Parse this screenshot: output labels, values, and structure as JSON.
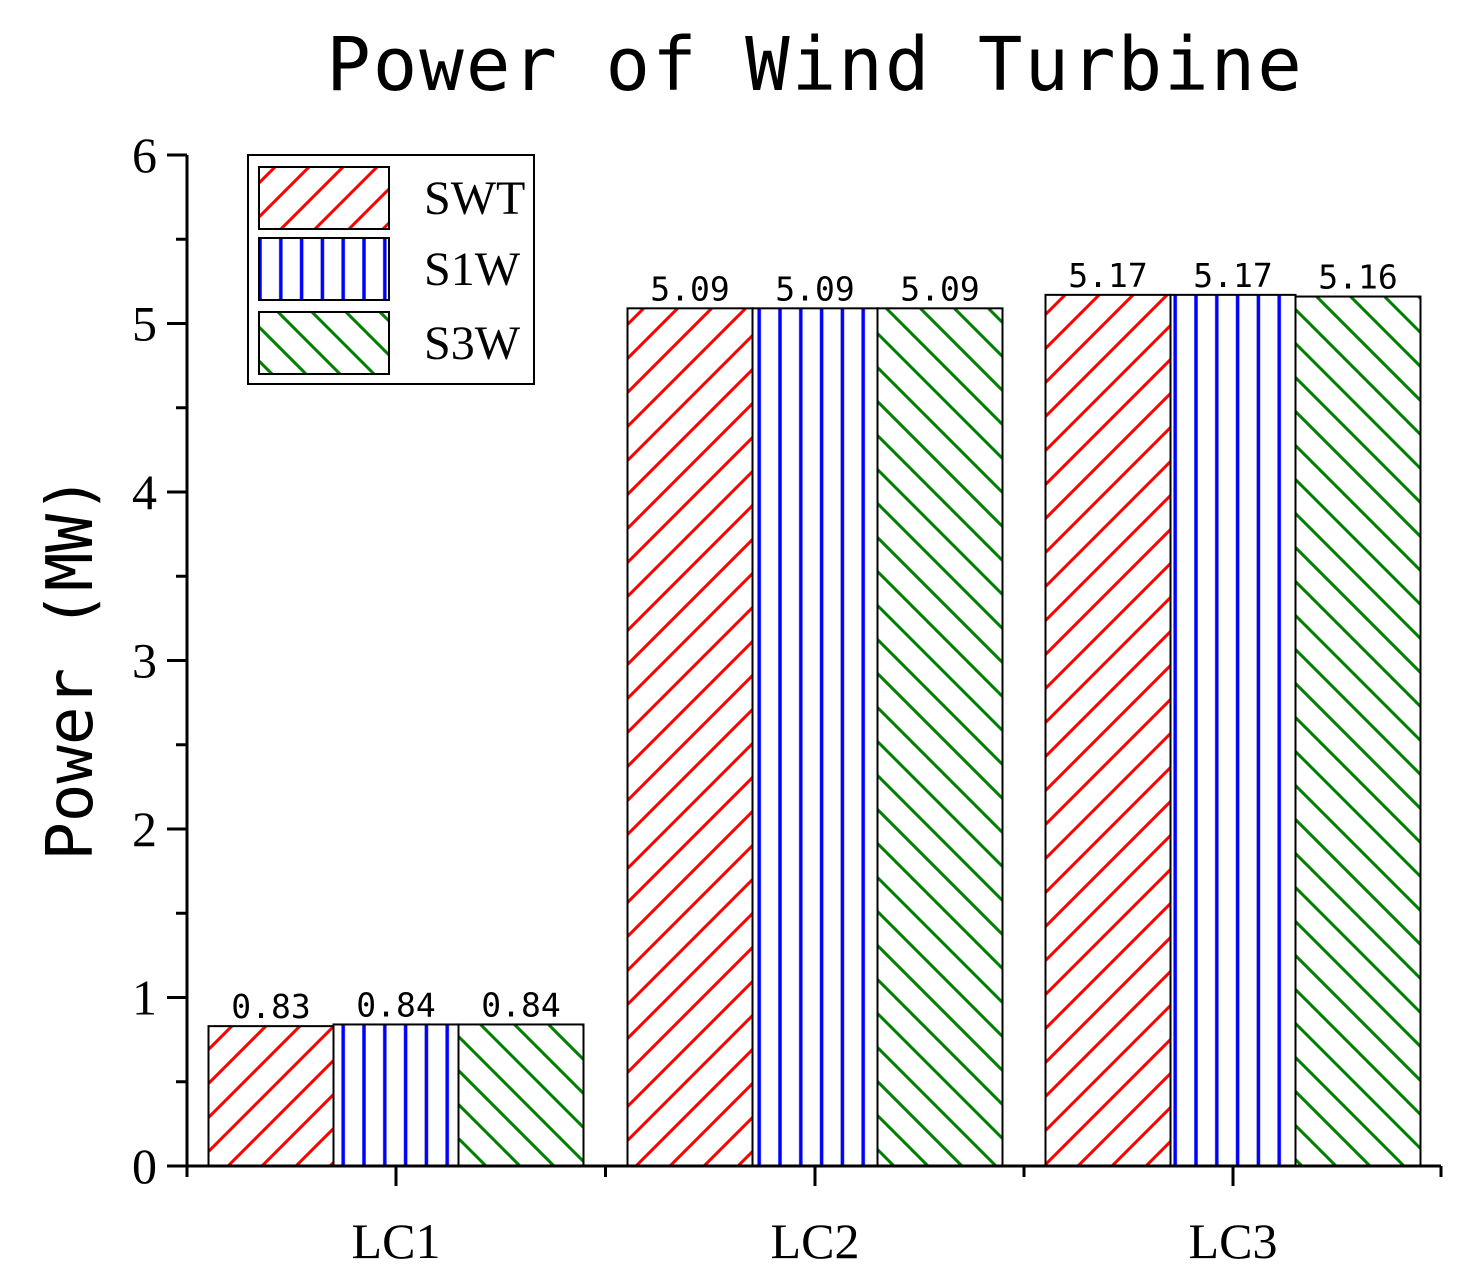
{
  "chart_data": {
    "type": "bar",
    "title": "Power of Wind Turbine",
    "xlabel": "",
    "ylabel": "Power (MW)",
    "ylim": [
      0,
      6
    ],
    "yticks": [
      0,
      1,
      2,
      3,
      4,
      5,
      6
    ],
    "categories": [
      "LC1",
      "LC2",
      "LC3"
    ],
    "series": [
      {
        "name": "SWT",
        "values": [
          0.83,
          5.09,
          5.17
        ],
        "labels": [
          "0.83",
          "5.09",
          "5.17"
        ],
        "color": "#ff0000",
        "pattern": "diagonal-up"
      },
      {
        "name": "S1W",
        "values": [
          0.84,
          5.09,
          5.17
        ],
        "labels": [
          "0.84",
          "5.09",
          "5.17"
        ],
        "color": "#0000ff",
        "pattern": "vertical"
      },
      {
        "name": "S3W",
        "values": [
          0.84,
          5.09,
          5.16
        ],
        "labels": [
          "0.84",
          "5.09",
          "5.16"
        ],
        "color": "#008000",
        "pattern": "diagonal-down"
      }
    ],
    "legend_position": "top-left",
    "grid": false
  }
}
